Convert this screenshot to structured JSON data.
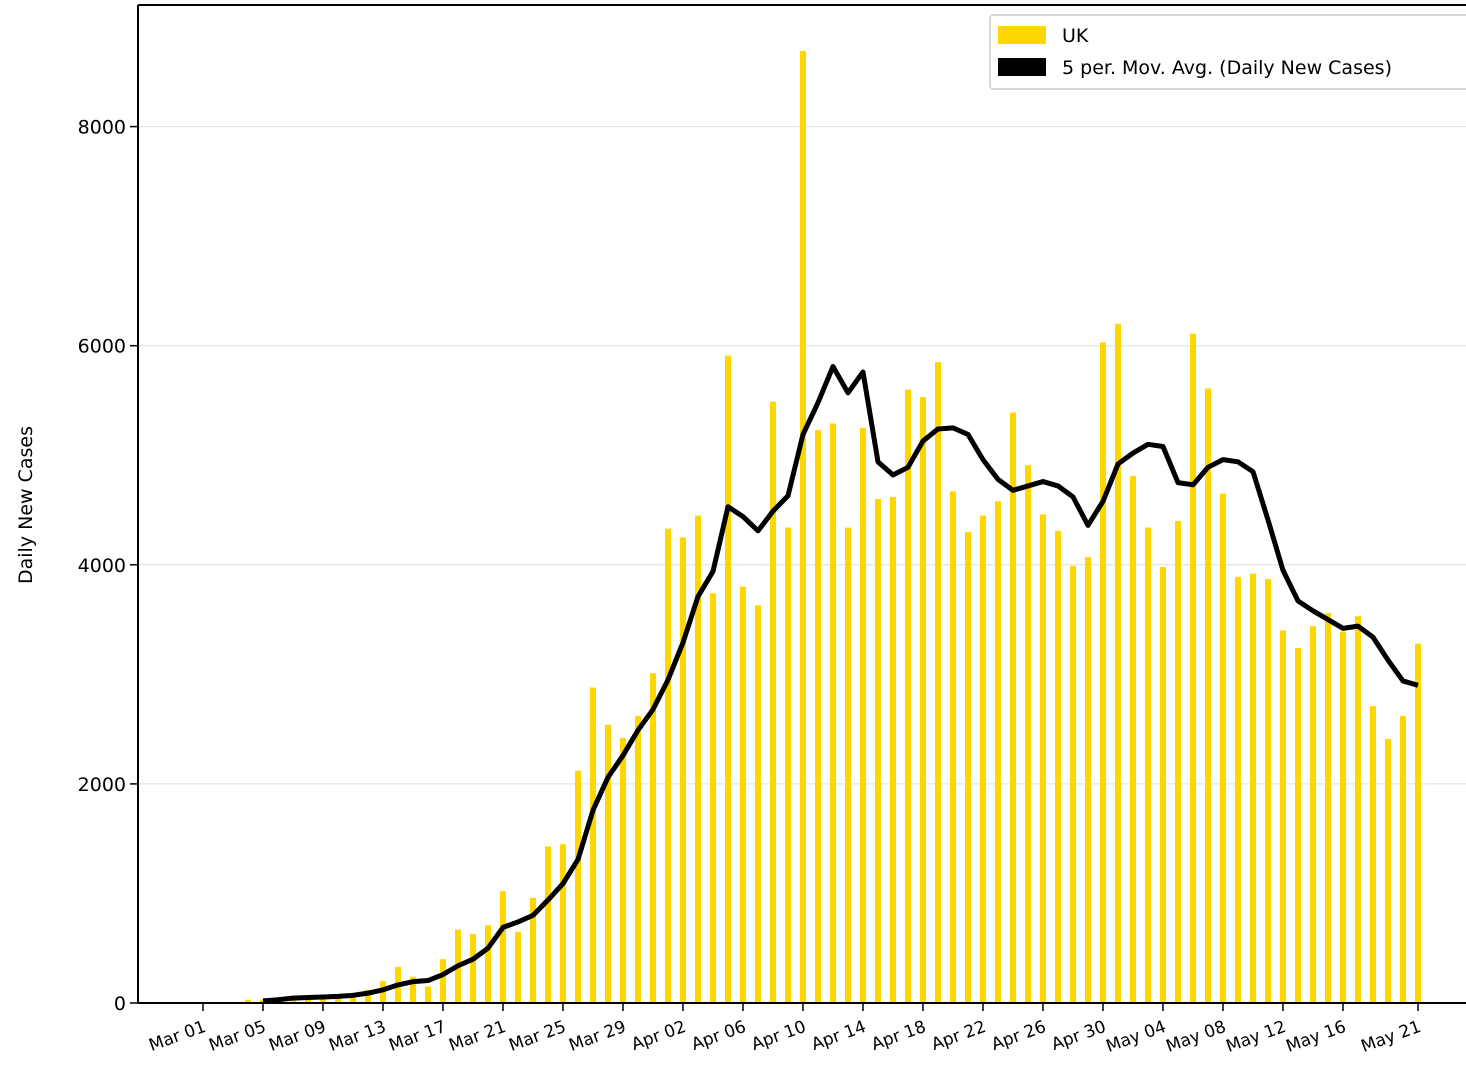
{
  "chart_data": {
    "type": "bar",
    "ylabel": "Daily New Cases",
    "grid": true,
    "legend": "upper right",
    "categories": [
      "Mar 01",
      null,
      null,
      null,
      "Mar 05",
      null,
      null,
      null,
      "Mar 09",
      null,
      null,
      null,
      "Mar 13",
      null,
      null,
      null,
      "Mar 17",
      null,
      null,
      null,
      "Mar 21",
      null,
      null,
      null,
      "Mar 25",
      null,
      null,
      null,
      "Mar 29",
      null,
      null,
      null,
      "Apr 02",
      null,
      null,
      null,
      "Apr 06",
      null,
      null,
      null,
      "Apr 10",
      null,
      null,
      null,
      "Apr 14",
      null,
      null,
      null,
      "Apr 18",
      null,
      null,
      null,
      "Apr 22",
      null,
      null,
      null,
      "Apr 26",
      null,
      null,
      null,
      "Apr 30",
      null,
      null,
      null,
      "May 04",
      null,
      null,
      null,
      "May 08",
      null,
      null,
      null,
      "May 12",
      null,
      null,
      null,
      "May 16",
      null,
      null,
      null,
      null,
      "May 21"
    ],
    "series": [
      {
        "name": "UK",
        "type": "bar",
        "color": "#ffd700",
        "values": [
          0,
          0,
          0,
          30,
          30,
          40,
          50,
          60,
          50,
          70,
          80,
          120,
          200,
          330,
          240,
          150,
          400,
          670,
          630,
          710,
          1020,
          650,
          960,
          1430,
          1450,
          2120,
          2880,
          2540,
          2420,
          2620,
          3010,
          4330,
          4250,
          4450,
          3740,
          5910,
          3800,
          3630,
          5490,
          4340,
          8690,
          5230,
          5290,
          4340,
          5250,
          4600,
          4620,
          5600,
          5530,
          5850,
          4670,
          4300,
          4450,
          4580,
          5390,
          4910,
          4460,
          4310,
          3990,
          4070,
          6030,
          6200,
          4810,
          4340,
          3980,
          4400,
          6110,
          5610,
          4650,
          3890,
          3920,
          3870,
          3400,
          3240,
          3440,
          3560,
          3390,
          3530,
          2710,
          2410,
          2620,
          3280
        ]
      },
      {
        "name": "5 per. Mov. Avg. (Daily New Cases)",
        "type": "line",
        "color": "#000000",
        "values": [
          null,
          null,
          null,
          null,
          20,
          30,
          45,
          50,
          55,
          60,
          70,
          90,
          120,
          165,
          195,
          205,
          260,
          340,
          400,
          500,
          690,
          740,
          800,
          940,
          1090,
          1310,
          1760,
          2060,
          2260,
          2490,
          2680,
          2950,
          3290,
          3710,
          3940,
          4530,
          4440,
          4310,
          4490,
          4630,
          5190,
          5480,
          5810,
          5570,
          5760,
          4940,
          4820,
          4890,
          5130,
          5240,
          5250,
          5190,
          4960,
          4780,
          4680,
          4720,
          4760,
          4720,
          4620,
          4360,
          4580,
          4920,
          5020,
          5100,
          5080,
          4750,
          4730,
          4890,
          4960,
          4940,
          4850,
          4410,
          3950,
          3670,
          3580,
          3500,
          3420,
          3440,
          3340,
          3130,
          2940,
          2900
        ]
      }
    ],
    "ylim": [
      0,
      9110
    ],
    "yticks": [
      0,
      2000,
      4000,
      6000,
      8000
    ]
  }
}
